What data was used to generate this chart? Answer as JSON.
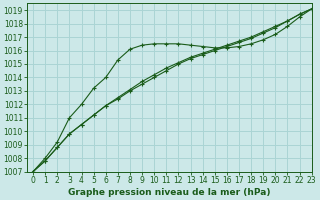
{
  "title": "Graphe pression niveau de la mer (hPa)",
  "background_color": "#cce8e8",
  "grid_color": "#aad4d4",
  "line_color": "#1a5c1a",
  "xlim": [
    -0.5,
    23
  ],
  "ylim": [
    1007,
    1019.5
  ],
  "xticks": [
    0,
    1,
    2,
    3,
    4,
    5,
    6,
    7,
    8,
    9,
    10,
    11,
    12,
    13,
    14,
    15,
    16,
    17,
    18,
    19,
    20,
    21,
    22,
    23
  ],
  "yticks": [
    1007,
    1008,
    1009,
    1010,
    1011,
    1012,
    1013,
    1014,
    1015,
    1016,
    1017,
    1018,
    1019
  ],
  "series": [
    [
      1007.0,
      1008.0,
      1009.2,
      1011.0,
      1012.0,
      1013.2,
      1014.0,
      1015.3,
      1016.1,
      1016.4,
      1016.5,
      1016.5,
      1016.5,
      1016.4,
      1016.3,
      1016.2,
      1016.2,
      1016.3,
      1016.5,
      1016.8,
      1017.2,
      1017.8,
      1018.5,
      1019.1
    ],
    [
      1007.0,
      1007.8,
      1008.8,
      1009.8,
      1010.5,
      1011.2,
      1011.9,
      1012.4,
      1013.0,
      1013.5,
      1014.0,
      1014.5,
      1015.0,
      1015.4,
      1015.7,
      1016.0,
      1016.3,
      1016.6,
      1016.9,
      1017.3,
      1017.7,
      1018.2,
      1018.7,
      1019.1
    ],
    [
      1007.0,
      1007.8,
      1008.8,
      1009.8,
      1010.5,
      1011.2,
      1011.9,
      1012.5,
      1013.1,
      1013.7,
      1014.2,
      1014.7,
      1015.1,
      1015.5,
      1015.8,
      1016.1,
      1016.4,
      1016.7,
      1017.0,
      1017.4,
      1017.8,
      1018.2,
      1018.7,
      1019.1
    ]
  ],
  "tick_fontsize": 5.5,
  "xlabel_fontsize": 6.5
}
